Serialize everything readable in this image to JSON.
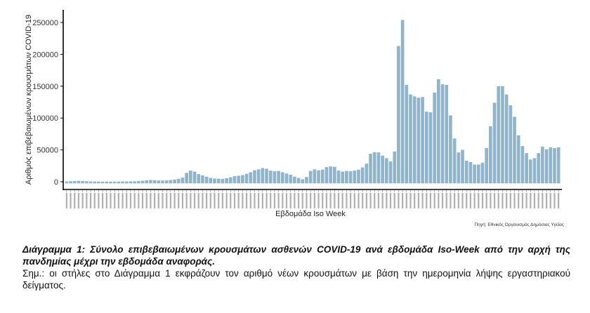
{
  "chart_data": {
    "type": "bar",
    "ylabel": "Αριθμός επιβεβαιωμένων κρουσμάτων COVID-19",
    "xlabel": "Εβδομάδα Iso Week",
    "yticks": [
      0,
      50000,
      100000,
      150000,
      200000,
      250000
    ],
    "ytick_labels": [
      "0",
      "50000",
      "100000",
      "150000",
      "200000",
      "250000"
    ],
    "ylim": [
      -2500,
      265000
    ],
    "grid": false,
    "bar_color": "#8fb4cc",
    "source": "Πηγή: Εθνικός Οργανισμός Δημόσιας Υγείας",
    "values": [
      500,
      900,
      1200,
      1500,
      1200,
      800,
      500,
      400,
      300,
      300,
      250,
      250,
      300,
      300,
      400,
      500,
      600,
      700,
      1000,
      1600,
      2200,
      2800,
      2400,
      2000,
      1900,
      2200,
      2800,
      3500,
      4500,
      6500,
      14000,
      17500,
      16000,
      12000,
      10000,
      8000,
      6000,
      5000,
      4800,
      4500,
      5500,
      7000,
      9000,
      9500,
      10500,
      12500,
      15000,
      18000,
      19500,
      21500,
      20500,
      17500,
      16500,
      17000,
      15000,
      13000,
      11000,
      8000,
      6000,
      4000,
      7500,
      17000,
      19500,
      18000,
      19000,
      23000,
      24000,
      23500,
      17500,
      16000,
      17000,
      16500,
      17500,
      19000,
      22500,
      28500,
      44000,
      46500,
      46000,
      41000,
      37000,
      32000,
      47500,
      213000,
      254000,
      152000,
      137000,
      134000,
      132000,
      133000,
      110000,
      109000,
      140000,
      161000,
      153000,
      152000,
      104000,
      68000,
      46000,
      50000,
      33000,
      31000,
      27000,
      27000,
      30000,
      53000,
      87000,
      124000,
      150000,
      150000,
      137000,
      120000,
      102000,
      73000,
      56000,
      45000,
      35000,
      37000,
      45000,
      55000,
      51000,
      54000,
      53000,
      54000
    ]
  },
  "caption": {
    "title": "Διάγραμμα 1: Σύνολο επιβεβαιωμένων κρουσμάτων ασθενών COVID-19 ανά εβδομάδα Iso-Week από την αρχή της πανδημίας μέχρι την εβδομάδα αναφοράς.",
    "note": "Σημ.: οι στήλες στο Διάγραμμα 1 εκφράζουν τον αριθμό νέων κρουσμάτων με βάση την ημερομηνία λήψης εργαστηριακού δείγματος."
  }
}
